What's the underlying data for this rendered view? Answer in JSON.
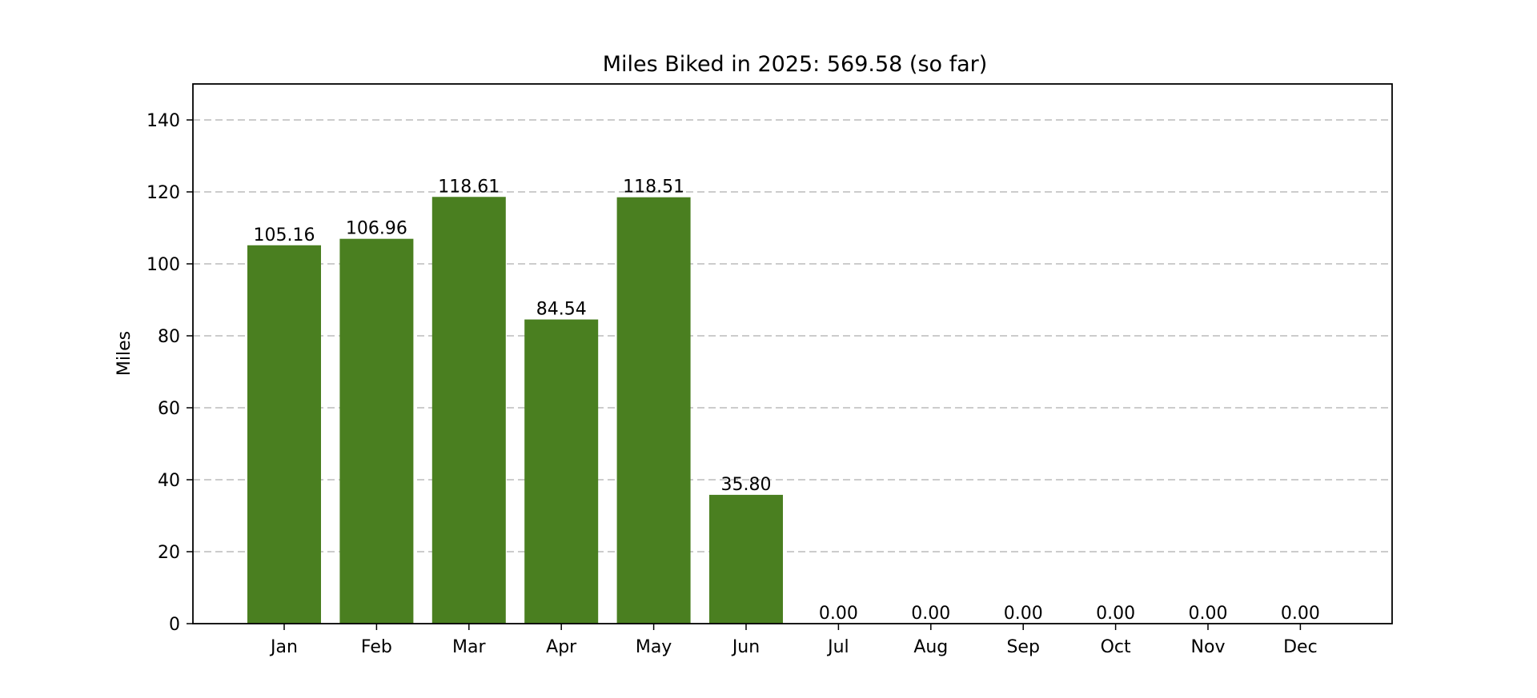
{
  "chart_data": {
    "type": "bar",
    "title": "Miles Biked in 2025: 569.58 (so far)",
    "xlabel": "",
    "ylabel": "Miles",
    "categories": [
      "Jan",
      "Feb",
      "Mar",
      "Apr",
      "May",
      "Jun",
      "Jul",
      "Aug",
      "Sep",
      "Oct",
      "Nov",
      "Dec"
    ],
    "values": [
      105.16,
      106.96,
      118.61,
      84.54,
      118.51,
      35.8,
      0,
      0,
      0,
      0,
      0,
      0
    ],
    "data_labels": [
      "105.16",
      "106.96",
      "118.61",
      "84.54",
      "118.51",
      "35.80",
      "0.00",
      "0.00",
      "0.00",
      "0.00",
      "0.00",
      "0.00"
    ],
    "ylim": [
      0,
      150
    ],
    "yticks": [
      0,
      20,
      40,
      60,
      80,
      100,
      120,
      140
    ],
    "grid": "horizontal dashed",
    "colors": {
      "bar": "#4a7f20",
      "grid": "#cccccc"
    }
  }
}
